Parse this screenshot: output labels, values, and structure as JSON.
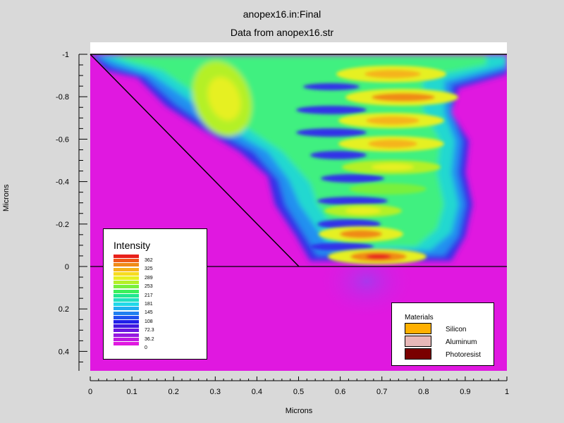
{
  "chart_data": {
    "type": "heatmap",
    "title": "anopex16.in:Final",
    "subtitle": "Data from anopex16.str",
    "xlabel": "Microns",
    "ylabel": "Microns",
    "xlim": [
      0,
      1
    ],
    "ylim": [
      0.5,
      -1
    ],
    "xticks": [
      "0",
      "0.1",
      "0.2",
      "0.3",
      "0.4",
      "0.5",
      "0.6",
      "0.7",
      "0.8",
      "0.9",
      "1"
    ],
    "yticks": [
      "-1",
      "-0.8",
      "-0.6",
      "-0.4",
      "-0.2",
      "0",
      "0.2",
      "0.4"
    ],
    "legend_title": "Intensity",
    "colorbar_labels": [
      "362",
      "325",
      "289",
      "253",
      "217",
      "181",
      "145",
      "108",
      "72.3",
      "36.2",
      "0"
    ],
    "colorbar_colors": [
      "#e8201a",
      "#ee5a18",
      "#f08a18",
      "#f5b41c",
      "#f7dc20",
      "#e6f020",
      "#b4f028",
      "#78f03c",
      "#3cf05a",
      "#20e890",
      "#20e0c0",
      "#20d8e8",
      "#20b0f0",
      "#2080f0",
      "#2050f0",
      "#2020e8",
      "#4018e0",
      "#6a18e0",
      "#9618e0",
      "#c018e0",
      "#e018e0"
    ],
    "materials_title": "Materials",
    "materials": [
      {
        "name": "Silicon",
        "color": "#ffb000"
      },
      {
        "name": "Aluminum",
        "color": "#e8b8b8"
      },
      {
        "name": "Photoresist",
        "color": "#7a0000"
      }
    ],
    "boundaries": {
      "resist_top_y": -1,
      "substrate_top_y": 0,
      "sloped_edge": [
        [
          0,
          -1
        ],
        [
          0.5,
          0
        ]
      ]
    },
    "hotspots": [
      {
        "x": 0.3,
        "y": -0.83,
        "level": "253"
      },
      {
        "x": 0.72,
        "y": -0.9,
        "level": "325"
      },
      {
        "x": 0.74,
        "y": -0.8,
        "level": "325"
      },
      {
        "x": 0.72,
        "y": -0.69,
        "level": "289"
      },
      {
        "x": 0.72,
        "y": -0.58,
        "level": "289"
      },
      {
        "x": 0.72,
        "y": -0.47,
        "level": "217"
      },
      {
        "x": 0.65,
        "y": -0.27,
        "level": "217"
      },
      {
        "x": 0.65,
        "y": -0.16,
        "level": "289"
      },
      {
        "x": 0.69,
        "y": -0.04,
        "level": "362"
      }
    ]
  }
}
